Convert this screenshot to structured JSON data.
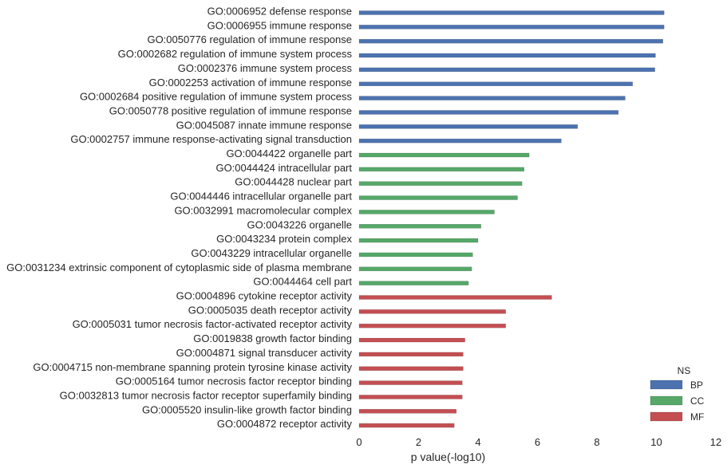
{
  "chart_data": {
    "type": "bar",
    "orientation": "horizontal",
    "xlabel": "p value(-log10)",
    "xlim": [
      0,
      12
    ],
    "xticks": [
      "0",
      "2",
      "4",
      "6",
      "8",
      "10",
      "12"
    ],
    "grid": false,
    "legend": {
      "title": "NS",
      "placement": "bottom-right",
      "entries": [
        {
          "name": "BP",
          "color": "#4c72b0"
        },
        {
          "name": "CC",
          "color": "#55a868"
        },
        {
          "name": "MF",
          "color": "#c44e52"
        }
      ]
    },
    "bars": [
      {
        "label": "GO:0006952 defense response",
        "ns": "BP",
        "value": 10.26
      },
      {
        "label": "GO:0006955 immune response",
        "ns": "BP",
        "value": 10.26
      },
      {
        "label": "GO:0050776 regulation of immune response",
        "ns": "BP",
        "value": 10.22
      },
      {
        "label": "GO:0002682 regulation of immune system process",
        "ns": "BP",
        "value": 9.97
      },
      {
        "label": "GO:0002376 immune system process",
        "ns": "BP",
        "value": 9.95
      },
      {
        "label": "GO:0002253 activation of immune response",
        "ns": "BP",
        "value": 9.2
      },
      {
        "label": "GO:0002684 positive regulation of immune system process",
        "ns": "BP",
        "value": 8.95
      },
      {
        "label": "GO:0050778 positive regulation of immune response",
        "ns": "BP",
        "value": 8.72
      },
      {
        "label": "GO:0045087 innate immune response",
        "ns": "BP",
        "value": 7.35
      },
      {
        "label": "GO:0002757 immune response-activating signal transduction",
        "ns": "BP",
        "value": 6.8
      },
      {
        "label": "GO:0044422 organelle part",
        "ns": "CC",
        "value": 5.72
      },
      {
        "label": "GO:0044424 intracellular part",
        "ns": "CC",
        "value": 5.55
      },
      {
        "label": "GO:0044428 nuclear part",
        "ns": "CC",
        "value": 5.48
      },
      {
        "label": "GO:0044446 intracellular organelle part",
        "ns": "CC",
        "value": 5.33
      },
      {
        "label": "GO:0032991 macromolecular complex",
        "ns": "CC",
        "value": 4.55
      },
      {
        "label": "GO:0043226 organelle",
        "ns": "CC",
        "value": 4.1
      },
      {
        "label": "GO:0043234 protein complex",
        "ns": "CC",
        "value": 4.0
      },
      {
        "label": "GO:0043229 intracellular organelle",
        "ns": "CC",
        "value": 3.82
      },
      {
        "label": "GO:0031234 extrinsic component of cytoplasmic side of plasma membrane",
        "ns": "CC",
        "value": 3.79
      },
      {
        "label": "GO:0044464 cell part",
        "ns": "CC",
        "value": 3.68
      },
      {
        "label": "GO:0004896 cytokine receptor activity",
        "ns": "MF",
        "value": 6.48
      },
      {
        "label": "GO:0005035 death receptor activity",
        "ns": "MF",
        "value": 4.93
      },
      {
        "label": "GO:0005031 tumor necrosis factor-activated receptor activity",
        "ns": "MF",
        "value": 4.93
      },
      {
        "label": "GO:0019838 growth factor binding",
        "ns": "MF",
        "value": 3.56
      },
      {
        "label": "GO:0004871 signal transducer activity",
        "ns": "MF",
        "value": 3.5
      },
      {
        "label": "GO:0004715 non-membrane spanning protein tyrosine kinase activity",
        "ns": "MF",
        "value": 3.5
      },
      {
        "label": "GO:0005164 tumor necrosis factor receptor binding",
        "ns": "MF",
        "value": 3.47
      },
      {
        "label": "GO:0032813 tumor necrosis factor receptor superfamily binding",
        "ns": "MF",
        "value": 3.47
      },
      {
        "label": "GO:0005520 insulin-like growth factor binding",
        "ns": "MF",
        "value": 3.27
      },
      {
        "label": "GO:0004872 receptor activity",
        "ns": "MF",
        "value": 3.2
      }
    ]
  }
}
